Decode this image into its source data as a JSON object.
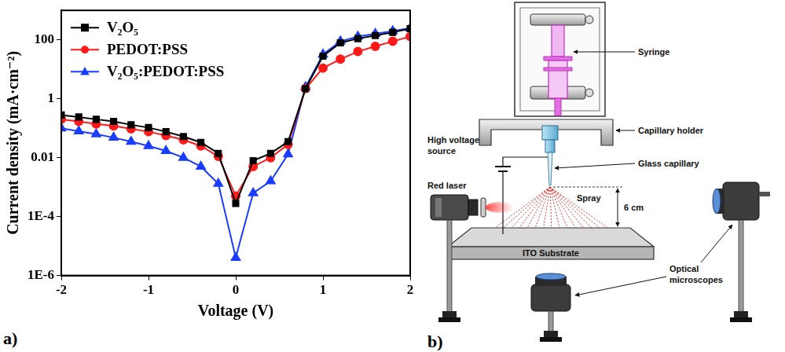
{
  "panel_labels": {
    "a": "a)",
    "b": "b)"
  },
  "chart_data": {
    "type": "line",
    "x_label": "Voltage (V)",
    "y_label": "Current density (mA·cm⁻²)",
    "x": [
      -2,
      -1.8,
      -1.6,
      -1.4,
      -1.2,
      -1,
      -0.8,
      -0.6,
      -0.4,
      -0.2,
      0,
      0.2,
      0.4,
      0.6,
      0.8,
      1,
      1.2,
      1.4,
      1.6,
      1.8,
      2
    ],
    "series": [
      {
        "name": "V₂O₅",
        "color": "#000000",
        "marker": "square",
        "line_style": "solid",
        "values": [
          0.28,
          0.24,
          0.2,
          0.17,
          0.13,
          0.105,
          0.076,
          0.052,
          0.033,
          0.014,
          0.00028,
          0.0079,
          0.014,
          0.035,
          2.2,
          28,
          79,
          110,
          140,
          180,
          240
        ]
      },
      {
        "name": "PEDOT:PSS",
        "color": "#ff1a1a",
        "marker": "circle",
        "line_style": "solid",
        "values": [
          0.2,
          0.17,
          0.14,
          0.12,
          0.095,
          0.076,
          0.056,
          0.04,
          0.025,
          0.011,
          0.0005,
          0.005,
          0.01,
          0.028,
          2.2,
          11,
          22,
          40,
          60,
          89,
          130
        ]
      },
      {
        "name": "V₂O₅:PEDOT:PSS",
        "color": "#1a3cff",
        "marker": "triangle",
        "line_style": "solid",
        "values": [
          0.1,
          0.079,
          0.063,
          0.048,
          0.035,
          0.025,
          0.017,
          0.01,
          0.005,
          0.0013,
          4e-06,
          0.00063,
          0.0016,
          0.013,
          2.5,
          32,
          89,
          130,
          160,
          200,
          250
        ]
      }
    ],
    "xlim": [
      -2,
      2
    ],
    "xticks": [
      -2,
      -1,
      0,
      1,
      2
    ],
    "ylim": [
      1e-06,
      1000
    ],
    "yticks": [
      {
        "value": 1e-06,
        "label": "1E-6"
      },
      {
        "value": 0.0001,
        "label": "1E-4"
      },
      0.01,
      1,
      100
    ],
    "log": "y",
    "grid": false,
    "legend": "upper left"
  },
  "diagram": {
    "syringe": "Syringe",
    "capillary_holder": "Capillary holder",
    "high_voltage_source": "High voltage source",
    "glass_capillary": "Glass capillary",
    "spray": "Spray",
    "red_laser": "Red laser",
    "distance": "6 cm",
    "substrate": "ITO Substrate",
    "optical_microscopes": "Optical microscopes"
  }
}
